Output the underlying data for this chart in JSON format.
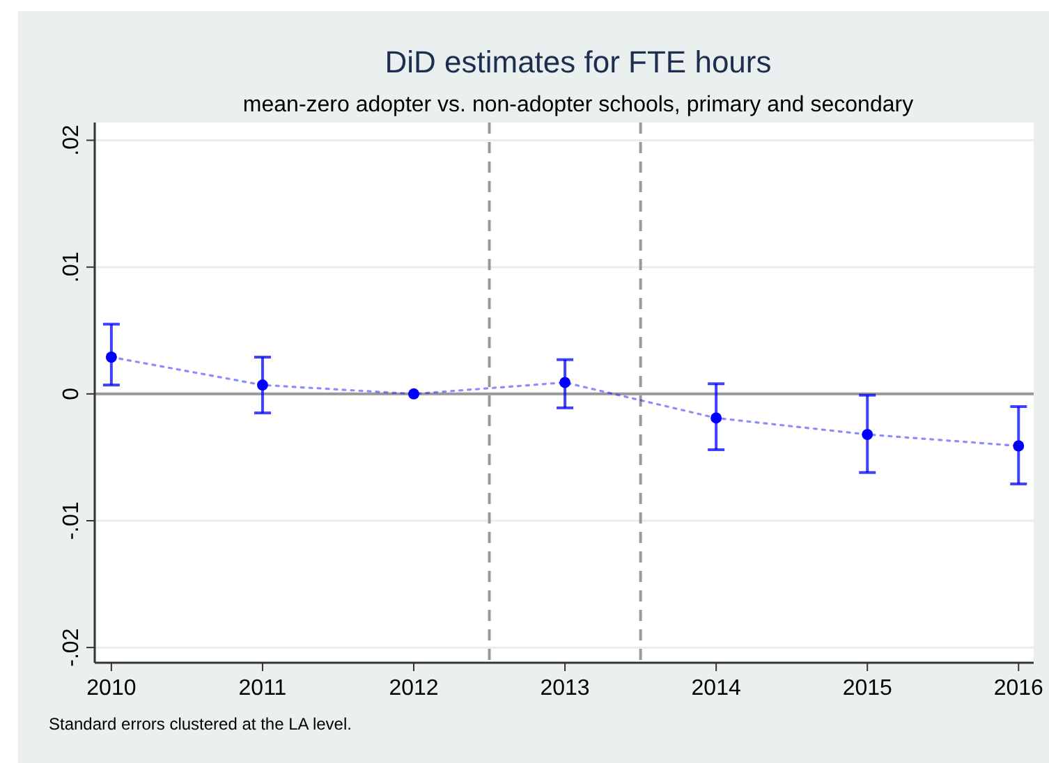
{
  "chart_data": {
    "type": "line",
    "title": "DiD estimates for FTE hours",
    "subtitle": "mean-zero adopter vs. non-adopter schools, primary and secondary",
    "x": [
      2010,
      2011,
      2012,
      2013,
      2014,
      2015,
      2016
    ],
    "series": [
      {
        "color": "#0000ff",
        "values": [
          0.0029,
          0.0007,
          0,
          0.0009,
          -0.0019,
          -0.0032,
          -0.0041
        ],
        "errors": [
          [
            0.0007,
            0.0055
          ],
          [
            -0.0015,
            0.0029
          ],
          null,
          [
            -0.0011,
            0.0027
          ],
          [
            -0.0044,
            0.0008
          ],
          [
            -0.0062,
            -0.0001
          ],
          [
            -0.0071,
            -0.001
          ]
        ]
      }
    ],
    "xlim": [
      2009.89,
      2016.1
    ],
    "xticks": [
      2010,
      2011,
      2012,
      2013,
      2014,
      2015,
      2016
    ],
    "ylim": [
      -0.0212,
      0.0214
    ],
    "yticks": [
      {
        "value": 0.02,
        "label": ".02"
      },
      {
        "value": 0.01,
        "label": ".01"
      },
      0,
      {
        "value": -0.01,
        "label": "-.01"
      },
      {
        "value": -0.02,
        "label": "-.02"
      }
    ],
    "grid": "y",
    "marker": "circle",
    "line_style": "dotted",
    "ref_lines": [
      {
        "axis": "y",
        "value": 0,
        "color": "#999999",
        "line_style": "solid"
      },
      {
        "axis": "x",
        "value": 2012.5,
        "color": "#999999",
        "line_style": "dashed"
      },
      {
        "axis": "x",
        "value": 2013.5,
        "color": "#999999",
        "line_style": "dashed"
      }
    ],
    "annotations": [
      "Standard errors clustered at the LA level."
    ]
  }
}
